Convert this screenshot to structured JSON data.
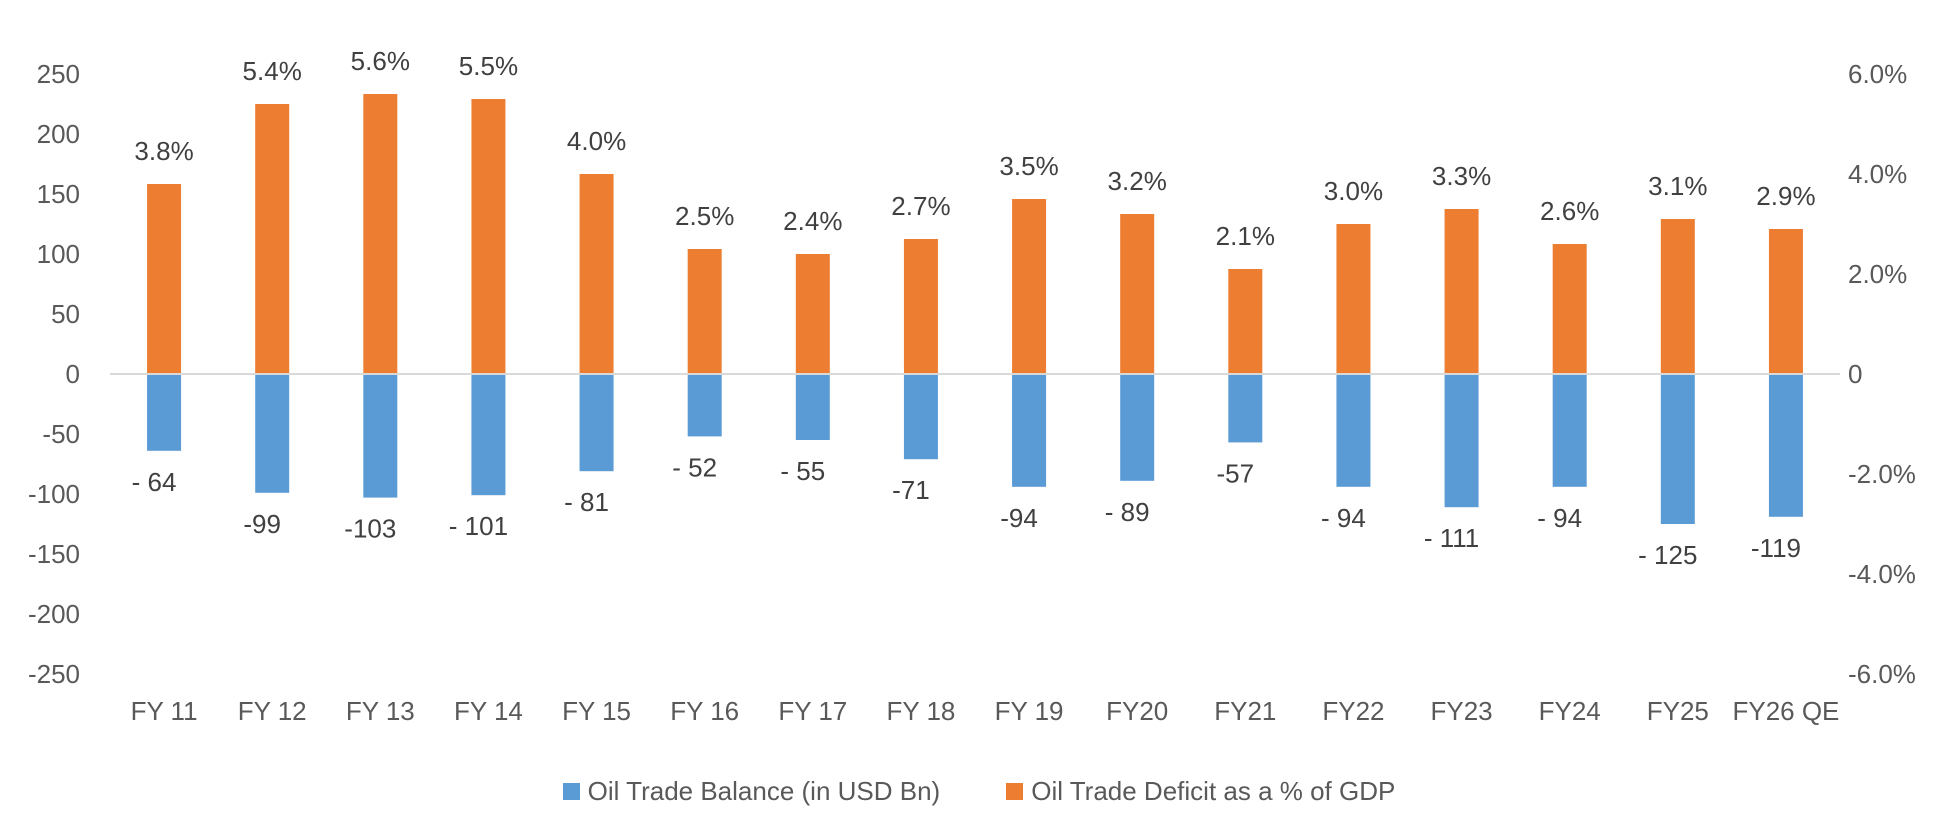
{
  "chart_data": {
    "type": "bar",
    "categories": [
      "FY 11",
      "FY 12",
      "FY 13",
      "FY 14",
      "FY 15",
      "FY 16",
      "FY 17",
      "FY 18",
      "FY 19",
      "FY20",
      "FY21",
      "FY22",
      "FY23",
      "FY24",
      "FY25",
      "FY26 QE"
    ],
    "series": [
      {
        "name": "Oil Trade Balance (in USD Bn)",
        "axis": "left",
        "color": "#5B9BD5",
        "values": [
          -64,
          -99,
          -103,
          -101,
          -81,
          -52,
          -55,
          -71,
          -94,
          -89,
          -57,
          -94,
          -111,
          -94,
          -125,
          -119
        ],
        "labels": [
          "- 64",
          "-99",
          "-103",
          "- 101",
          "- 81",
          "- 52",
          "- 55",
          "-71",
          "-94",
          "- 89",
          "-57",
          "- 94",
          "- 111",
          "- 94",
          "- 125",
          "-119"
        ]
      },
      {
        "name": "Oil Trade Deficit as a % of GDP",
        "axis": "right",
        "color": "#ED7D31",
        "values": [
          3.8,
          5.4,
          5.6,
          5.5,
          4.0,
          2.5,
          2.4,
          2.7,
          3.5,
          3.2,
          2.1,
          3.0,
          3.3,
          2.6,
          3.1,
          2.9
        ],
        "labels": [
          "3.8%",
          "5.4%",
          "5.6%",
          "5.5%",
          "4.0%",
          "2.5%",
          "2.4%",
          "2.7%",
          "3.5%",
          "3.2%",
          "2.1%",
          "3.0%",
          "3.3%",
          "2.6%",
          "3.1%",
          "2.9%"
        ]
      }
    ],
    "y_left": {
      "lim": [
        -250,
        250
      ],
      "ticks": [
        250,
        200,
        150,
        100,
        50,
        0,
        -50,
        -100,
        -150,
        -200,
        -250
      ],
      "tick_labels": [
        "250",
        "200",
        "150",
        "100",
        "50",
        "0",
        "-50",
        "-100",
        "-150",
        "-200",
        "-250"
      ]
    },
    "y_right": {
      "lim": [
        -6.0,
        6.0
      ],
      "ticks": [
        6,
        4,
        2,
        0,
        -2,
        -4,
        -6
      ],
      "tick_labels": [
        "6.0%",
        "4.0%",
        "2.0%",
        "0",
        "-2.0%",
        "-4.0%",
        "-6.0%"
      ]
    },
    "grid": false,
    "legend_position": "bottom"
  }
}
